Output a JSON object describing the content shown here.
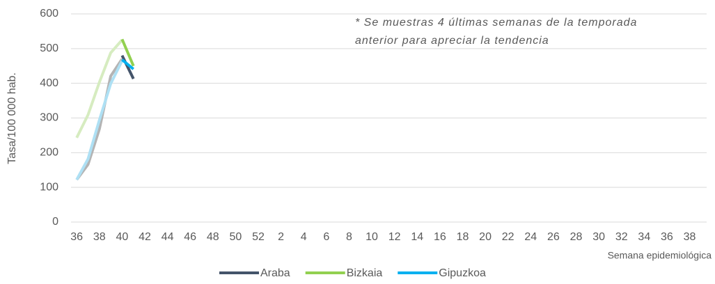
{
  "chart_data": {
    "type": "line",
    "annotation": [
      "* Se muestras 4 últimas semanas de la temporada",
      "anterior para apreciar la tendencia"
    ],
    "y_label": "Tasa/100 000 hab.",
    "x_label": "Semana epidemiológica",
    "categories": [
      "36",
      null,
      "38",
      null,
      "40",
      null,
      "42",
      null,
      "44",
      null,
      "46",
      null,
      "48",
      null,
      "50",
      null,
      "52",
      null,
      "2",
      null,
      "4",
      null,
      "6",
      null,
      "8",
      null,
      "10",
      null,
      "12",
      null,
      "14",
      null,
      "16",
      null,
      "18",
      null,
      "20",
      null,
      "22",
      null,
      "24",
      null,
      "26",
      null,
      "28",
      null,
      "30",
      null,
      "32",
      null,
      "34",
      null,
      "36",
      null,
      "38",
      null
    ],
    "series": [
      {
        "color": "#b4b4b4",
        "values": [
          122,
          166,
          268,
          421,
          470,
          null,
          null,
          null,
          null,
          null,
          null,
          null,
          null,
          null,
          null,
          null,
          null,
          null,
          null,
          null,
          null,
          null,
          null,
          null,
          null,
          null,
          null,
          null,
          null,
          null,
          null,
          null,
          null,
          null,
          null,
          null,
          null,
          null,
          null,
          null,
          null,
          null,
          null,
          null,
          null,
          null,
          null,
          null,
          null,
          null,
          null,
          null,
          null,
          null,
          null,
          null
        ]
      },
      {
        "color": "#d6ecc0",
        "values": [
          243,
          309,
          403,
          488,
          525,
          null,
          null,
          null,
          null,
          null,
          null,
          null,
          null,
          null,
          null,
          null,
          null,
          null,
          null,
          null,
          null,
          null,
          null,
          null,
          null,
          null,
          null,
          null,
          null,
          null,
          null,
          null,
          null,
          null,
          null,
          null,
          null,
          null,
          null,
          null,
          null,
          null,
          null,
          null,
          null,
          null,
          null,
          null,
          null,
          null,
          null,
          null,
          null,
          null,
          null,
          null
        ]
      },
      {
        "color": "#aee0f4",
        "values": [
          122,
          182,
          294,
          399,
          465,
          null,
          null,
          null,
          null,
          null,
          null,
          null,
          null,
          null,
          null,
          null,
          null,
          null,
          null,
          null,
          null,
          null,
          null,
          null,
          null,
          null,
          null,
          null,
          null,
          null,
          null,
          null,
          null,
          null,
          null,
          null,
          null,
          null,
          null,
          null,
          null,
          null,
          null,
          null,
          null,
          null,
          null,
          null,
          null,
          null,
          null,
          null,
          null,
          null,
          null,
          null
        ]
      },
      {
        "name": "Araba",
        "color": "#44546a",
        "values": [
          null,
          null,
          null,
          null,
          480,
          413,
          null,
          null,
          null,
          null,
          null,
          null,
          null,
          null,
          null,
          null,
          null,
          null,
          null,
          null,
          null,
          null,
          null,
          null,
          null,
          null,
          null,
          null,
          null,
          null,
          null,
          null,
          null,
          null,
          null,
          null,
          null,
          null,
          null,
          null,
          null,
          null,
          null,
          null,
          null,
          null,
          null,
          null,
          null,
          null,
          null,
          null,
          null,
          null,
          null,
          null
        ]
      },
      {
        "name": "Bizkaia",
        "color": "#92d050",
        "values": [
          null,
          null,
          null,
          null,
          527,
          450,
          null,
          null,
          null,
          null,
          null,
          null,
          null,
          null,
          null,
          null,
          null,
          null,
          null,
          null,
          null,
          null,
          null,
          null,
          null,
          null,
          null,
          null,
          null,
          null,
          null,
          null,
          null,
          null,
          null,
          null,
          null,
          null,
          null,
          null,
          null,
          null,
          null,
          null,
          null,
          null,
          null,
          null,
          null,
          null,
          null,
          null,
          null,
          null,
          null,
          null
        ]
      },
      {
        "name": "Gipuzkoa",
        "color": "#00b0f0",
        "values": [
          null,
          null,
          null,
          null,
          468,
          441,
          null,
          null,
          null,
          null,
          null,
          null,
          null,
          null,
          null,
          null,
          null,
          null,
          null,
          null,
          null,
          null,
          null,
          null,
          null,
          null,
          null,
          null,
          null,
          null,
          null,
          null,
          null,
          null,
          null,
          null,
          null,
          null,
          null,
          null,
          null,
          null,
          null,
          null,
          null,
          null,
          null,
          null,
          null,
          null,
          null,
          null,
          null,
          null,
          null,
          null
        ]
      }
    ],
    "ylim": [
      0,
      600
    ],
    "yticks": [
      0,
      100,
      200,
      300,
      400,
      500,
      600
    ],
    "grid": true,
    "legend": "bottom"
  }
}
